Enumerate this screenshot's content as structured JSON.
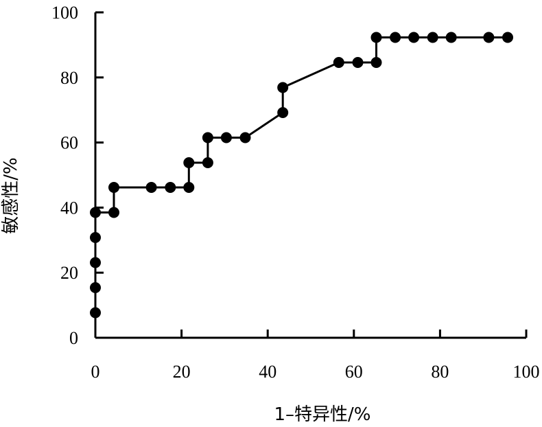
{
  "chart_data": {
    "type": "line",
    "title": "",
    "xlabel": "1–特异性/%",
    "ylabel": "敏感性/%",
    "xlim": [
      0,
      100
    ],
    "ylim": [
      0,
      100
    ],
    "x_ticks": [
      0,
      20,
      40,
      60,
      80,
      100
    ],
    "y_ticks": [
      0,
      20,
      40,
      60,
      80,
      100
    ],
    "x_tick_labels": [
      "0",
      "20",
      "40",
      "60",
      "80",
      "100"
    ],
    "y_tick_labels": [
      "0",
      "20",
      "40",
      "60",
      "80",
      "100"
    ],
    "grid": false,
    "series": [
      {
        "x": [
          0,
          0,
          0,
          0,
          0,
          4.3,
          4.3,
          13,
          17.4,
          21.7,
          21.7,
          26.1,
          26.1,
          30.4,
          34.8,
          43.5,
          43.5,
          56.5,
          60.9,
          65.2,
          65.2,
          69.6,
          73.9,
          78.3,
          82.6,
          91.3,
          95.7
        ],
        "y": [
          7.7,
          15.4,
          23.1,
          30.8,
          38.5,
          38.5,
          46.2,
          46.2,
          46.2,
          46.2,
          53.8,
          53.8,
          61.5,
          61.5,
          61.5,
          69.2,
          76.9,
          84.6,
          84.6,
          84.6,
          92.3,
          92.3,
          92.3,
          92.3,
          92.3,
          92.3,
          92.3
        ]
      }
    ]
  }
}
